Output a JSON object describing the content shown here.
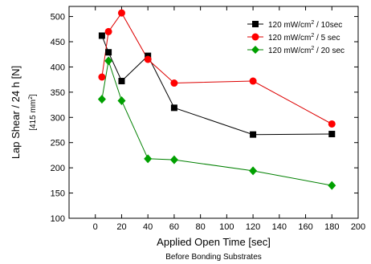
{
  "chart_data": {
    "type": "line",
    "xlabel": "Applied Open Time [sec]",
    "xlabel_sub": "Before Bonding Substrates",
    "ylabel": "Lap Shear / 24 h [N]",
    "ylabel_sub_prefix": "[415 mm",
    "ylabel_sub_sup": "2",
    "ylabel_sub_suffix": "]",
    "xlim": [
      -20,
      200
    ],
    "ylim": [
      100,
      520
    ],
    "x_ticks": [
      0,
      20,
      40,
      60,
      80,
      100,
      120,
      140,
      160,
      180,
      200
    ],
    "y_ticks": [
      100,
      150,
      200,
      250,
      300,
      350,
      400,
      450,
      500
    ],
    "legend_position": "top-right",
    "series": [
      {
        "name_prefix": "120 mW/cm",
        "name_sup": "2",
        "name_suffix": " / 10sec",
        "color": "#000000",
        "line_color": "#000000",
        "marker": "square",
        "x": [
          5,
          10,
          20,
          40,
          60,
          120,
          180
        ],
        "y": [
          462,
          429,
          372,
          422,
          319,
          266,
          267
        ]
      },
      {
        "name_prefix": "120 mW/cm",
        "name_sup": "2",
        "name_suffix": " / 5 sec",
        "color": "#ff0000",
        "line_color": "#dd0000",
        "marker": "circle",
        "x": [
          5,
          10,
          20,
          40,
          60,
          120,
          180
        ],
        "y": [
          380,
          470,
          507,
          415,
          368,
          372,
          287
        ]
      },
      {
        "name_prefix": "120 mW/cm",
        "name_sup": "2",
        "name_suffix": " / 20 sec",
        "color": "#00a000",
        "line_color": "#008000",
        "marker": "diamond",
        "x": [
          5,
          10,
          20,
          40,
          60,
          120,
          180
        ],
        "y": [
          336,
          412,
          333,
          218,
          216,
          194,
          165
        ]
      }
    ]
  }
}
